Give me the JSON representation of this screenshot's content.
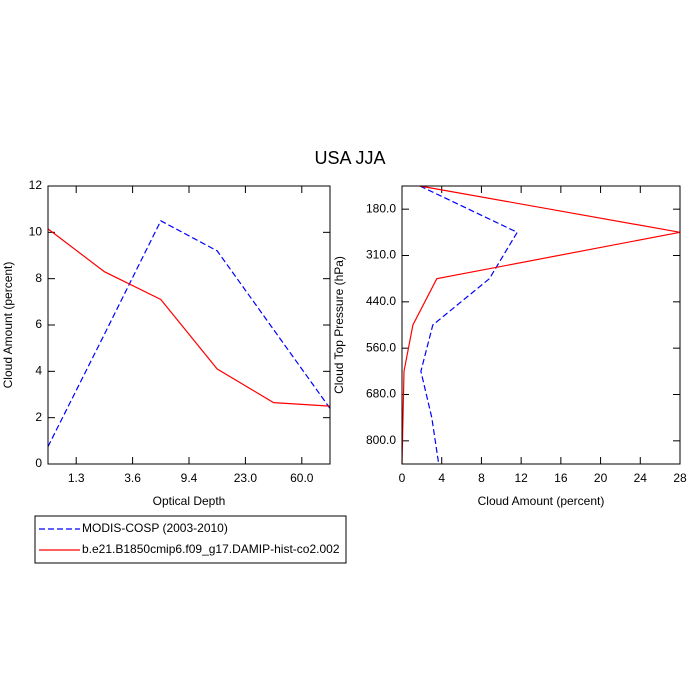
{
  "title": "USA JJA",
  "chart_data": [
    {
      "type": "line",
      "xlabel": "Optical Depth",
      "ylabel": "Cloud Amount (percent)",
      "x": [
        0,
        1,
        2,
        3,
        4,
        5
      ],
      "xlim": [
        0,
        5
      ],
      "xticks": [
        {
          "value": 0.5,
          "label": "1.3"
        },
        {
          "value": 1.5,
          "label": "3.6"
        },
        {
          "value": 2.5,
          "label": "9.4"
        },
        {
          "value": 3.5,
          "label": "23.0"
        },
        {
          "value": 4.5,
          "label": "60.0"
        }
      ],
      "ylim": [
        0,
        12
      ],
      "yticks": [
        0,
        2,
        4,
        6,
        8,
        10,
        12
      ],
      "series": [
        {
          "name": "MODIS-COSP (2003-2010)",
          "color": "#0000ff",
          "dash": "dashed",
          "values": [
            0.75,
            5.6,
            10.5,
            9.2,
            5.8,
            2.4
          ]
        },
        {
          "name": "b.e21.B1850cmip6.f09_g17.DAMIP-hist-co2.002",
          "color": "#ff0000",
          "dash": "solid",
          "values": [
            10.15,
            8.3,
            7.1,
            4.1,
            2.65,
            2.5
          ]
        }
      ]
    },
    {
      "type": "line",
      "orientation": "horizontal",
      "xlabel": "Cloud Amount (percent)",
      "ylabel": "Cloud Top Pressure (hPa)",
      "y": [
        0,
        1,
        2,
        3,
        4,
        5,
        6
      ],
      "ylim": [
        0,
        6
      ],
      "yreverse": true,
      "yticks": [
        {
          "value": 0.5,
          "label": "180.0"
        },
        {
          "value": 1.5,
          "label": "310.0"
        },
        {
          "value": 2.5,
          "label": "440.0"
        },
        {
          "value": 3.5,
          "label": "560.0"
        },
        {
          "value": 4.5,
          "label": "680.0"
        },
        {
          "value": 5.5,
          "label": "800.0"
        }
      ],
      "xlim": [
        0,
        28
      ],
      "xticks": [
        0,
        4,
        8,
        12,
        16,
        20,
        24,
        28
      ],
      "series": [
        {
          "color": "#0000ff",
          "dash": "dashed",
          "values": [
            1.8,
            11.6,
            8.8,
            3.1,
            1.9,
            3.0,
            3.7
          ]
        },
        {
          "color": "#ff0000",
          "dash": "solid",
          "values": [
            1.8,
            28,
            3.5,
            1.1,
            0.2,
            0.1,
            0.0
          ]
        }
      ]
    }
  ]
}
